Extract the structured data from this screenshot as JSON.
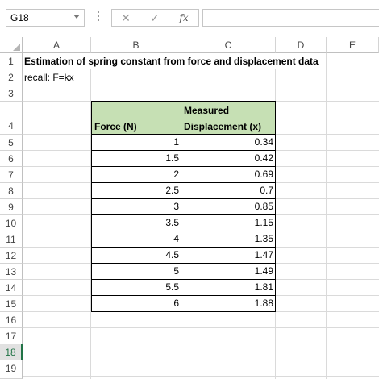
{
  "namebox": {
    "value": "G18"
  },
  "formula_buttons": {
    "cancel_icon": "x-icon",
    "enter_icon": "checkmark-icon",
    "fx_label": "fx"
  },
  "formula_input": {
    "value": ""
  },
  "columns": [
    "A",
    "B",
    "C",
    "D",
    "E"
  ],
  "rows": [
    "1",
    "2",
    "3",
    "4",
    "5",
    "6",
    "7",
    "8",
    "9",
    "10",
    "11",
    "12",
    "13",
    "14",
    "15",
    "16",
    "17",
    "18",
    "19"
  ],
  "selected_row": "18",
  "sheet": {
    "title": "Estimation of spring constant from force and displacement data",
    "recall": "recall: F=kx",
    "table": {
      "force_header": "Force (N)",
      "disp_header_line1": "Measured",
      "disp_header_line2": "Displacement (x)",
      "force": [
        "1",
        "1.5",
        "2",
        "2.5",
        "3",
        "3.5",
        "4",
        "4.5",
        "5",
        "5.5",
        "6"
      ],
      "displacement": [
        "0.34",
        "0.42",
        "0.69",
        "0.7",
        "0.85",
        "1.15",
        "1.35",
        "1.47",
        "1.49",
        "1.81",
        "1.88"
      ]
    }
  }
}
